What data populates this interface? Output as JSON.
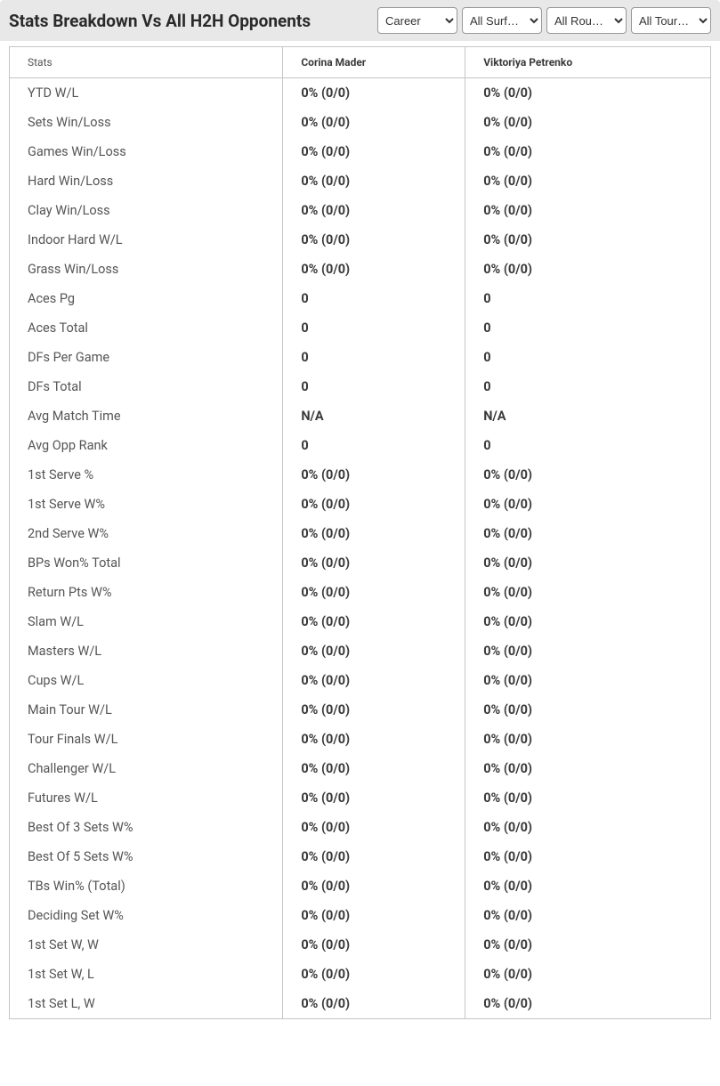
{
  "header": {
    "title": "Stats Breakdown Vs All H2H Opponents",
    "selects": {
      "career": "Career",
      "surface": "All Surf…",
      "round": "All Rou…",
      "tour": "All Tour…"
    }
  },
  "table": {
    "columns": {
      "stats": "Stats",
      "player1": "Corina Mader",
      "player2": "Viktoriya Petrenko"
    },
    "rows": [
      {
        "stat": "YTD W/L",
        "p1": "0% (0/0)",
        "p2": "0% (0/0)"
      },
      {
        "stat": "Sets Win/Loss",
        "p1": "0% (0/0)",
        "p2": "0% (0/0)"
      },
      {
        "stat": "Games Win/Loss",
        "p1": "0% (0/0)",
        "p2": "0% (0/0)"
      },
      {
        "stat": "Hard Win/Loss",
        "p1": "0% (0/0)",
        "p2": "0% (0/0)"
      },
      {
        "stat": "Clay Win/Loss",
        "p1": "0% (0/0)",
        "p2": "0% (0/0)"
      },
      {
        "stat": "Indoor Hard W/L",
        "p1": "0% (0/0)",
        "p2": "0% (0/0)"
      },
      {
        "stat": "Grass Win/Loss",
        "p1": "0% (0/0)",
        "p2": "0% (0/0)"
      },
      {
        "stat": "Aces Pg",
        "p1": "0",
        "p2": "0"
      },
      {
        "stat": "Aces Total",
        "p1": "0",
        "p2": "0"
      },
      {
        "stat": "DFs Per Game",
        "p1": "0",
        "p2": "0"
      },
      {
        "stat": "DFs Total",
        "p1": "0",
        "p2": "0"
      },
      {
        "stat": "Avg Match Time",
        "p1": "N/A",
        "p2": "N/A"
      },
      {
        "stat": "Avg Opp Rank",
        "p1": "0",
        "p2": "0"
      },
      {
        "stat": "1st Serve %",
        "p1": "0% (0/0)",
        "p2": "0% (0/0)"
      },
      {
        "stat": "1st Serve W%",
        "p1": "0% (0/0)",
        "p2": "0% (0/0)"
      },
      {
        "stat": "2nd Serve W%",
        "p1": "0% (0/0)",
        "p2": "0% (0/0)"
      },
      {
        "stat": "BPs Won% Total",
        "p1": "0% (0/0)",
        "p2": "0% (0/0)"
      },
      {
        "stat": "Return Pts W%",
        "p1": "0% (0/0)",
        "p2": "0% (0/0)"
      },
      {
        "stat": "Slam W/L",
        "p1": "0% (0/0)",
        "p2": "0% (0/0)"
      },
      {
        "stat": "Masters W/L",
        "p1": "0% (0/0)",
        "p2": "0% (0/0)"
      },
      {
        "stat": "Cups W/L",
        "p1": "0% (0/0)",
        "p2": "0% (0/0)"
      },
      {
        "stat": "Main Tour W/L",
        "p1": "0% (0/0)",
        "p2": "0% (0/0)"
      },
      {
        "stat": "Tour Finals W/L",
        "p1": "0% (0/0)",
        "p2": "0% (0/0)"
      },
      {
        "stat": "Challenger W/L",
        "p1": "0% (0/0)",
        "p2": "0% (0/0)"
      },
      {
        "stat": "Futures W/L",
        "p1": "0% (0/0)",
        "p2": "0% (0/0)"
      },
      {
        "stat": "Best Of 3 Sets W%",
        "p1": "0% (0/0)",
        "p2": "0% (0/0)"
      },
      {
        "stat": "Best Of 5 Sets W%",
        "p1": "0% (0/0)",
        "p2": "0% (0/0)"
      },
      {
        "stat": "TBs Win% (Total)",
        "p1": "0% (0/0)",
        "p2": "0% (0/0)"
      },
      {
        "stat": "Deciding Set W%",
        "p1": "0% (0/0)",
        "p2": "0% (0/0)"
      },
      {
        "stat": "1st Set W, W",
        "p1": "0% (0/0)",
        "p2": "0% (0/0)"
      },
      {
        "stat": "1st Set W, L",
        "p1": "0% (0/0)",
        "p2": "0% (0/0)"
      },
      {
        "stat": "1st Set L, W",
        "p1": "0% (0/0)",
        "p2": "0% (0/0)"
      }
    ]
  },
  "style": {
    "header_bg": "#e8e8e8",
    "border_color": "#c5c5c5",
    "text_color": "#3a3a3a",
    "stat_label_color": "#555"
  }
}
